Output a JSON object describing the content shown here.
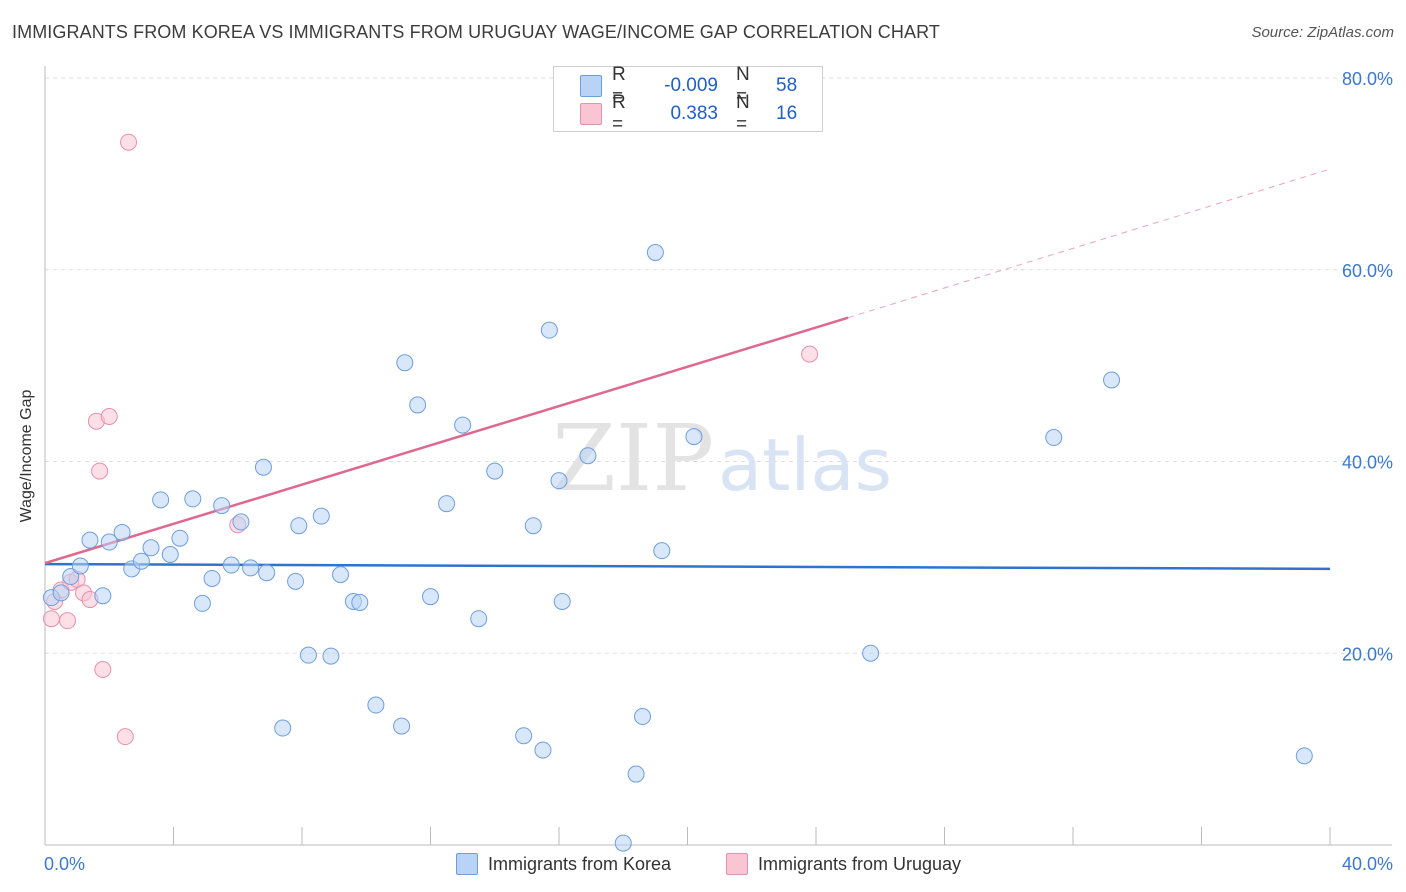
{
  "header": {
    "title": "IMMIGRANTS FROM KOREA VS IMMIGRANTS FROM URUGUAY WAGE/INCOME GAP CORRELATION CHART",
    "source": "Source: ZipAtlas.com"
  },
  "watermark": {
    "zip": "ZIP",
    "atlas": "atlas"
  },
  "colors": {
    "korea_fill": "#b8d3f5",
    "korea_stroke": "#6f9ede",
    "korea_line": "#2f73cf",
    "uruguay_fill": "#f9c4d4",
    "uruguay_stroke": "#e890ab",
    "uruguay_line": "#e0688f",
    "tick_label": "#3c79cc",
    "grid": "#dddddd"
  },
  "stats": [
    {
      "r_label": "R =",
      "r_value": "-0.009",
      "n_label": "N =",
      "n_value": "58"
    },
    {
      "r_label": "R =",
      "r_value": "0.383",
      "n_label": "N =",
      "n_value": "16"
    }
  ],
  "legend": {
    "korea": "Immigrants from Korea",
    "uruguay": "Immigrants from Uruguay"
  },
  "chart_data": {
    "type": "scatter",
    "xlabel": "",
    "ylabel": "Wage/Income Gap",
    "xlim": [
      0,
      40
    ],
    "ylim": [
      0,
      80
    ],
    "x_tick_labels": [
      {
        "value": 0,
        "label": "0.0%"
      },
      {
        "value": 40,
        "label": "40.0%"
      }
    ],
    "y_tick_labels": [
      {
        "value": 20,
        "label": "20.0%"
      },
      {
        "value": 40,
        "label": "40.0%"
      },
      {
        "value": 60,
        "label": "60.0%"
      },
      {
        "value": 80,
        "label": "80.0%"
      }
    ],
    "y_gridlines": [
      20,
      40,
      60,
      80
    ],
    "x_ticks": [
      0,
      4,
      8,
      12,
      16,
      20,
      24,
      28,
      32,
      36,
      40
    ],
    "series": [
      {
        "name": "Immigrants from Korea",
        "points": [
          [
            0.2,
            25.8
          ],
          [
            0.5,
            26.3
          ],
          [
            0.8,
            28.0
          ],
          [
            1.1,
            29.1
          ],
          [
            1.4,
            31.8
          ],
          [
            1.8,
            26.0
          ],
          [
            2.0,
            31.6
          ],
          [
            2.4,
            32.6
          ],
          [
            2.7,
            28.8
          ],
          [
            3.0,
            29.6
          ],
          [
            3.3,
            31.0
          ],
          [
            3.6,
            36.0
          ],
          [
            3.9,
            30.3
          ],
          [
            4.2,
            32.0
          ],
          [
            4.6,
            36.1
          ],
          [
            4.9,
            25.2
          ],
          [
            5.2,
            27.8
          ],
          [
            5.5,
            35.4
          ],
          [
            5.8,
            29.2
          ],
          [
            6.1,
            33.7
          ],
          [
            6.4,
            28.9
          ],
          [
            6.8,
            39.4
          ],
          [
            6.9,
            28.4
          ],
          [
            7.4,
            12.2
          ],
          [
            7.8,
            27.5
          ],
          [
            7.9,
            33.3
          ],
          [
            8.2,
            19.8
          ],
          [
            8.6,
            34.3
          ],
          [
            8.9,
            19.7
          ],
          [
            9.2,
            28.2
          ],
          [
            9.6,
            25.4
          ],
          [
            9.8,
            25.3
          ],
          [
            10.3,
            14.6
          ],
          [
            11.1,
            12.4
          ],
          [
            11.2,
            50.3
          ],
          [
            11.6,
            45.9
          ],
          [
            12.0,
            25.9
          ],
          [
            12.5,
            35.6
          ],
          [
            13.0,
            43.8
          ],
          [
            13.5,
            23.6
          ],
          [
            14.0,
            39.0
          ],
          [
            14.9,
            11.4
          ],
          [
            15.2,
            33.3
          ],
          [
            15.5,
            9.9
          ],
          [
            15.7,
            53.7
          ],
          [
            16.0,
            38.0
          ],
          [
            16.1,
            25.4
          ],
          [
            16.9,
            40.6
          ],
          [
            18.0,
            0.2
          ],
          [
            18.4,
            7.4
          ],
          [
            18.6,
            13.4
          ],
          [
            19.0,
            61.8
          ],
          [
            19.2,
            30.7
          ],
          [
            20.2,
            42.6
          ],
          [
            25.7,
            20.0
          ],
          [
            31.4,
            42.5
          ],
          [
            33.2,
            48.5
          ],
          [
            39.2,
            9.3
          ]
        ],
        "trend": {
          "x0": 0,
          "y0": 29.3,
          "x1": 40,
          "y1": 28.8
        }
      },
      {
        "name": "Immigrants from Uruguay",
        "points": [
          [
            0.2,
            23.6
          ],
          [
            0.3,
            25.4
          ],
          [
            0.5,
            26.6
          ],
          [
            0.7,
            23.4
          ],
          [
            0.8,
            27.4
          ],
          [
            1.0,
            27.7
          ],
          [
            1.2,
            26.3
          ],
          [
            1.4,
            25.6
          ],
          [
            1.6,
            44.2
          ],
          [
            1.7,
            39.0
          ],
          [
            1.8,
            18.3
          ],
          [
            2.0,
            44.7
          ],
          [
            2.5,
            11.3
          ],
          [
            2.6,
            73.3
          ],
          [
            6.0,
            33.4
          ],
          [
            23.8,
            51.2
          ]
        ],
        "trend": {
          "x0": 0,
          "y0": 29.4,
          "x1": 25,
          "y1": 55.0,
          "x_dash_end": 40,
          "y_dash_end": 70.5
        }
      }
    ]
  }
}
